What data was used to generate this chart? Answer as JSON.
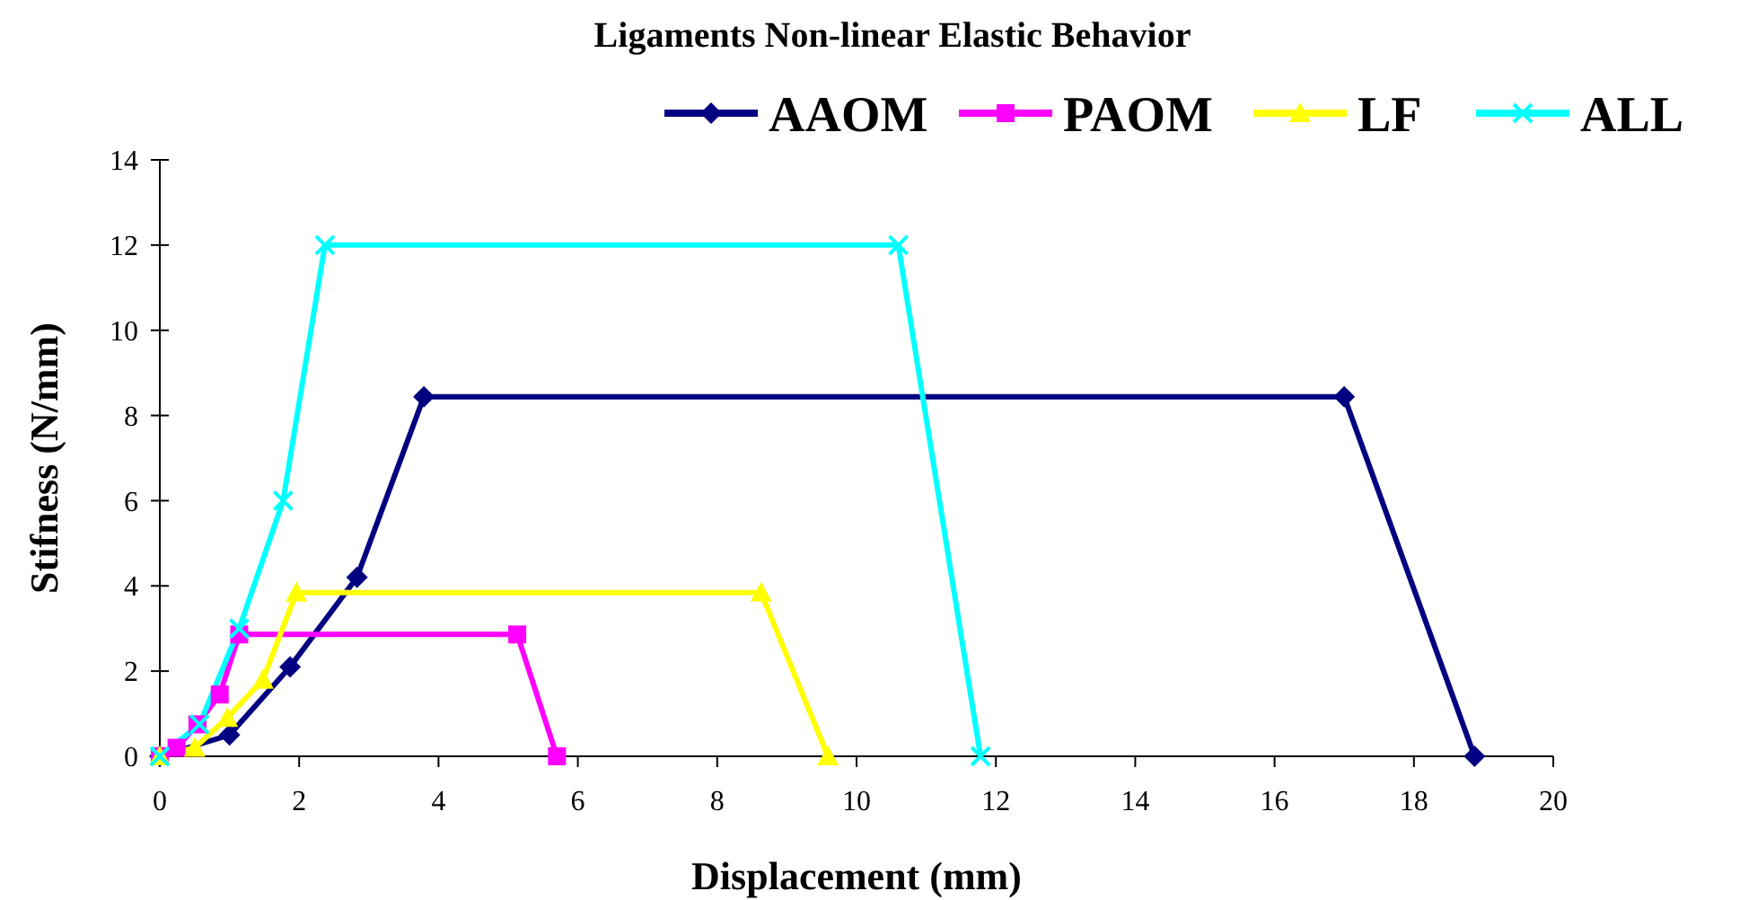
{
  "chart_data": {
    "type": "line",
    "title": "Ligaments Non-linear Elastic Behavior",
    "xlabel": "Displacement (mm)",
    "ylabel": "Stifness (N/mm)",
    "xlim": [
      0,
      20
    ],
    "xticks": [
      0,
      2,
      4,
      6,
      8,
      10,
      12,
      14,
      16,
      18,
      20
    ],
    "ylim": [
      0,
      14
    ],
    "yticks": [
      0,
      2,
      4,
      6,
      8,
      10,
      12,
      14
    ],
    "grid": false,
    "legend": "top right",
    "line_style": "solid",
    "series": [
      {
        "name": "AAOM",
        "color": "#000080",
        "marker": "diamond",
        "x": [
          0,
          1.0,
          1.87,
          2.83,
          3.79,
          17.0,
          18.87
        ],
        "values": [
          0,
          0.5,
          2.1,
          4.2,
          8.44,
          8.44,
          0
        ]
      },
      {
        "name": "PAOM",
        "color": "#ff00ff",
        "marker": "square",
        "x": [
          0,
          0.24,
          0.54,
          0.86,
          1.14,
          5.13,
          5.7
        ],
        "values": [
          0,
          0.2,
          0.75,
          1.45,
          2.86,
          2.86,
          0
        ]
      },
      {
        "name": "LF",
        "color": "#ffff00",
        "marker": "triangle",
        "x": [
          0,
          0.5,
          0.97,
          1.48,
          1.96,
          8.63,
          9.59
        ],
        "values": [
          0,
          0.2,
          0.9,
          1.8,
          3.84,
          3.84,
          0
        ]
      },
      {
        "name": "ALL",
        "color": "#00ffff",
        "marker": "cross",
        "x": [
          0,
          0.57,
          1.14,
          1.77,
          2.37,
          10.6,
          11.78
        ],
        "values": [
          0,
          0.75,
          3.0,
          6.0,
          12.0,
          12.0,
          0
        ]
      }
    ]
  }
}
